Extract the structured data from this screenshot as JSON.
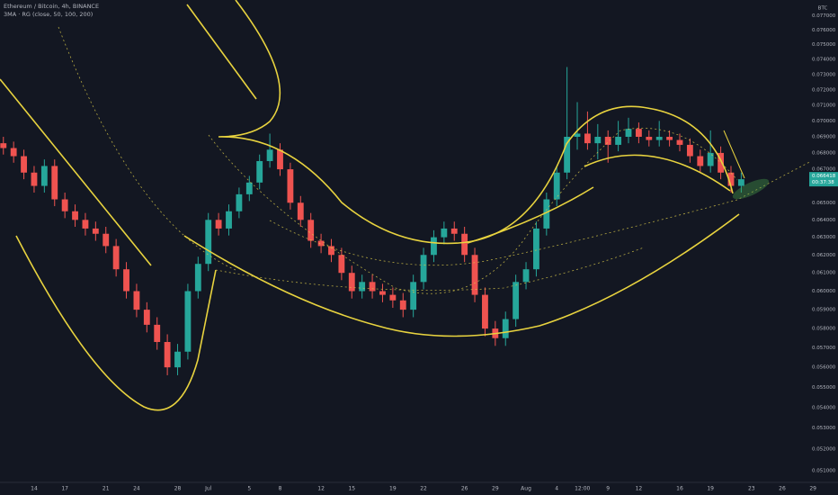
{
  "chart_data": {
    "type": "candlestick",
    "title": "Ethereum / Bitcoin, 4h, BINANCE",
    "subtitle": "3MA · RG (close, 50, 100, 200)",
    "axis_unit": "BTC",
    "last_price_label": "0.066418",
    "countdown": "00:37:38",
    "up_color": "#26a69a",
    "down_color": "#ef5350",
    "log_scale": true,
    "grid": false,
    "x": [
      -3,
      -2,
      -1,
      0,
      1,
      2,
      3,
      4,
      5,
      6,
      7,
      8,
      9,
      10,
      11,
      12,
      13,
      14,
      15,
      16,
      17,
      18,
      19,
      20,
      21,
      22,
      23,
      24,
      25,
      26,
      27,
      28,
      29,
      30,
      31,
      32,
      33,
      34,
      35,
      36,
      37,
      38,
      39,
      40,
      41,
      42,
      43,
      44,
      45,
      46,
      47,
      48,
      49,
      50,
      51,
      52,
      53,
      54,
      55,
      56,
      57,
      58,
      59,
      60,
      61,
      62,
      63,
      64,
      65,
      66,
      67,
      68,
      69
    ],
    "open": [
      0.0686,
      0.0683,
      0.0678,
      0.0668,
      0.066,
      0.0672,
      0.0652,
      0.0645,
      0.064,
      0.0635,
      0.0632,
      0.0625,
      0.0612,
      0.06,
      0.059,
      0.0582,
      0.0573,
      0.056,
      0.0568,
      0.06,
      0.0615,
      0.064,
      0.0635,
      0.0645,
      0.0655,
      0.0662,
      0.0675,
      0.0682,
      0.067,
      0.065,
      0.064,
      0.0628,
      0.0625,
      0.062,
      0.061,
      0.06,
      0.0605,
      0.06,
      0.0598,
      0.0595,
      0.059,
      0.0605,
      0.062,
      0.063,
      0.0635,
      0.0632,
      0.062,
      0.0598,
      0.058,
      0.0575,
      0.0585,
      0.0605,
      0.0612,
      0.0635,
      0.0652,
      0.0668,
      0.069,
      0.0692,
      0.0686,
      0.069,
      0.0685,
      0.069,
      0.0695,
      0.069,
      0.0688,
      0.069,
      0.0688,
      0.0685,
      0.0678,
      0.0672,
      0.068,
      0.0668,
      0.066
    ],
    "high": [
      0.069,
      0.0687,
      0.0682,
      0.0672,
      0.0676,
      0.0676,
      0.0656,
      0.0649,
      0.0644,
      0.0639,
      0.0636,
      0.0629,
      0.0616,
      0.0604,
      0.0594,
      0.0586,
      0.0577,
      0.0572,
      0.0604,
      0.0619,
      0.0644,
      0.0644,
      0.0649,
      0.0659,
      0.0666,
      0.0679,
      0.0692,
      0.0686,
      0.0674,
      0.0654,
      0.0644,
      0.0632,
      0.0629,
      0.0624,
      0.0614,
      0.0609,
      0.0609,
      0.0604,
      0.0602,
      0.0599,
      0.0609,
      0.0624,
      0.0634,
      0.0639,
      0.0639,
      0.0636,
      0.0624,
      0.0602,
      0.0584,
      0.0589,
      0.0609,
      0.0616,
      0.0639,
      0.0656,
      0.0672,
      0.0735,
      0.0712,
      0.0706,
      0.0698,
      0.0694,
      0.07,
      0.0702,
      0.0699,
      0.0694,
      0.07,
      0.0694,
      0.0692,
      0.0689,
      0.0682,
      0.0694,
      0.0684,
      0.0672,
      0.0668
    ],
    "low": [
      0.0679,
      0.0674,
      0.0664,
      0.0656,
      0.0656,
      0.0648,
      0.0641,
      0.0636,
      0.0631,
      0.0628,
      0.0621,
      0.0608,
      0.0596,
      0.0586,
      0.0578,
      0.0569,
      0.0556,
      0.0556,
      0.0564,
      0.0596,
      0.0611,
      0.0631,
      0.0631,
      0.0641,
      0.0651,
      0.0658,
      0.0671,
      0.0666,
      0.0646,
      0.0636,
      0.0624,
      0.0621,
      0.0616,
      0.0606,
      0.0596,
      0.0596,
      0.0596,
      0.0594,
      0.0591,
      0.0586,
      0.0586,
      0.0601,
      0.0616,
      0.0626,
      0.0628,
      0.0616,
      0.0594,
      0.0576,
      0.0571,
      0.0571,
      0.0581,
      0.0601,
      0.0608,
      0.0631,
      0.0648,
      0.0664,
      0.0682,
      0.0682,
      0.0676,
      0.0674,
      0.0681,
      0.0686,
      0.0686,
      0.0684,
      0.0684,
      0.0684,
      0.0681,
      0.0674,
      0.0668,
      0.0668,
      0.0664,
      0.0656,
      0.0656
    ],
    "close": [
      0.0683,
      0.0678,
      0.0668,
      0.066,
      0.0672,
      0.0652,
      0.0645,
      0.064,
      0.0635,
      0.0632,
      0.0625,
      0.0612,
      0.06,
      0.059,
      0.0582,
      0.0573,
      0.056,
      0.0568,
      0.06,
      0.0615,
      0.064,
      0.0635,
      0.0645,
      0.0655,
      0.0662,
      0.0675,
      0.0682,
      0.067,
      0.065,
      0.064,
      0.0628,
      0.0625,
      0.062,
      0.061,
      0.06,
      0.0605,
      0.06,
      0.0598,
      0.0595,
      0.059,
      0.0605,
      0.062,
      0.063,
      0.0635,
      0.0632,
      0.062,
      0.0598,
      0.058,
      0.0575,
      0.0585,
      0.0605,
      0.0612,
      0.0635,
      0.0652,
      0.0668,
      0.069,
      0.0692,
      0.0686,
      0.069,
      0.0685,
      0.069,
      0.0695,
      0.069,
      0.0688,
      0.069,
      0.0688,
      0.0685,
      0.0678,
      0.0672,
      0.068,
      0.0668,
      0.066,
      0.0664
    ],
    "xlim": [
      -3.33,
      76.6
    ],
    "xticks": [
      {
        "value": 0,
        "label": "14"
      },
      {
        "value": 3,
        "label": "17"
      },
      {
        "value": 7,
        "label": "21"
      },
      {
        "value": 10,
        "label": "24"
      },
      {
        "value": 14,
        "label": "28"
      },
      {
        "value": 17,
        "label": "Jul"
      },
      {
        "value": 21,
        "label": "5"
      },
      {
        "value": 24,
        "label": "8"
      },
      {
        "value": 28,
        "label": "12"
      },
      {
        "value": 31,
        "label": "15"
      },
      {
        "value": 35,
        "label": "19"
      },
      {
        "value": 38,
        "label": "22"
      },
      {
        "value": 42,
        "label": "26"
      },
      {
        "value": 45,
        "label": "29"
      },
      {
        "value": 48,
        "label": "Aug"
      },
      {
        "value": 51,
        "label": "4"
      },
      {
        "value": 53.5,
        "label": "12:00"
      },
      {
        "value": 56,
        "label": "9"
      },
      {
        "value": 59,
        "label": "12"
      },
      {
        "value": 63,
        "label": "16"
      },
      {
        "value": 66,
        "label": "19"
      },
      {
        "value": 70,
        "label": "23"
      },
      {
        "value": 73,
        "label": "26"
      },
      {
        "value": 76,
        "label": "29"
      }
    ],
    "ylim": [
      0.0505,
      0.0781
    ],
    "yticks": [
      {
        "value": 0.077,
        "label": "0.077000"
      },
      {
        "value": 0.076,
        "label": "0.076000"
      },
      {
        "value": 0.075,
        "label": "0.075000"
      },
      {
        "value": 0.074,
        "label": "0.074000"
      },
      {
        "value": 0.073,
        "label": "0.073000"
      },
      {
        "value": 0.072,
        "label": "0.072000"
      },
      {
        "value": 0.071,
        "label": "0.071000"
      },
      {
        "value": 0.07,
        "label": "0.070000"
      },
      {
        "value": 0.069,
        "label": "0.069000"
      },
      {
        "value": 0.068,
        "label": "0.068000"
      },
      {
        "value": 0.067,
        "label": "0.067000"
      },
      {
        "value": 0.065,
        "label": "0.065000"
      },
      {
        "value": 0.064,
        "label": "0.064000"
      },
      {
        "value": 0.063,
        "label": "0.063000"
      },
      {
        "value": 0.062,
        "label": "0.062000"
      },
      {
        "value": 0.061,
        "label": "0.061000"
      },
      {
        "value": 0.06,
        "label": "0.060000"
      },
      {
        "value": 0.059,
        "label": "0.059000"
      },
      {
        "value": 0.058,
        "label": "0.058000"
      },
      {
        "value": 0.057,
        "label": "0.057000"
      },
      {
        "value": 0.056,
        "label": "0.056000"
      },
      {
        "value": 0.055,
        "label": "0.055000"
      },
      {
        "value": 0.054,
        "label": "0.054000"
      },
      {
        "value": 0.053,
        "label": "0.053000"
      },
      {
        "value": 0.052,
        "label": "0.052000"
      },
      {
        "value": 0.051,
        "label": "0.051000"
      }
    ]
  }
}
